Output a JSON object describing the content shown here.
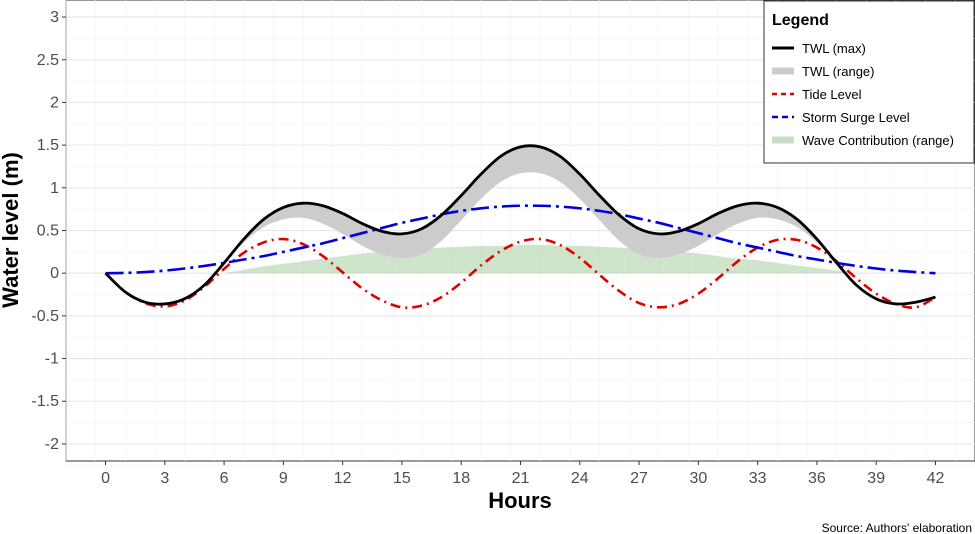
{
  "chart_data": {
    "type": "line",
    "xlabel": "Hours",
    "ylabel": "Water level (m)",
    "xlim": [
      -2,
      44
    ],
    "ylim": [
      -2.2,
      3.2
    ],
    "xticks": [
      0,
      3,
      6,
      9,
      12,
      15,
      18,
      21,
      24,
      27,
      30,
      33,
      36,
      39,
      42
    ],
    "yticks": [
      -2,
      -1.5,
      -1,
      -0.5,
      0,
      0.5,
      1,
      1.5,
      2,
      2.5,
      3
    ],
    "ytick_labels": [
      "-2",
      "-1.5",
      "-1",
      "-0.5",
      "0",
      "0.5",
      "1",
      "1.5",
      "2",
      "2.5",
      "3"
    ],
    "grid": true,
    "legend": {
      "title": "Legend",
      "placement": "top-right",
      "entries": [
        "TWL (max)",
        "TWL (range)",
        "Tide Level",
        "Storm Surge Level",
        "Wave Contribution (range)"
      ]
    },
    "caption": "Source: Authors' elaboration",
    "series": [
      {
        "name": "TWL (max)",
        "style": "solid",
        "color": "#000000",
        "x": [
          0,
          1,
          2,
          3,
          4,
          5,
          6,
          7,
          8,
          9,
          10,
          11,
          12,
          13,
          14,
          15,
          16,
          17,
          18,
          19,
          20,
          21,
          22,
          23,
          24,
          25,
          26,
          27,
          28,
          29,
          30,
          31,
          32,
          33,
          34,
          35,
          36,
          37,
          38,
          39,
          40,
          41,
          42
        ],
        "y": [
          0,
          -0.22,
          -0.34,
          -0.36,
          -0.3,
          -0.14,
          0.12,
          0.4,
          0.63,
          0.77,
          0.82,
          0.79,
          0.7,
          0.58,
          0.49,
          0.46,
          0.52,
          0.68,
          0.91,
          1.16,
          1.37,
          1.48,
          1.48,
          1.37,
          1.16,
          0.91,
          0.68,
          0.52,
          0.46,
          0.49,
          0.58,
          0.7,
          0.79,
          0.82,
          0.77,
          0.63,
          0.4,
          0.12,
          -0.14,
          -0.3,
          -0.36,
          -0.34,
          -0.28
        ]
      },
      {
        "name": "TWL (range)",
        "style": "band",
        "color": "#cccccc",
        "x": [
          0,
          1,
          2,
          3,
          4,
          5,
          6,
          7,
          8,
          9,
          10,
          11,
          12,
          13,
          14,
          15,
          16,
          17,
          18,
          19,
          20,
          21,
          22,
          23,
          24,
          25,
          26,
          27,
          28,
          29,
          30,
          31,
          32,
          33,
          34,
          35,
          36,
          37,
          38,
          39,
          40,
          41,
          42
        ],
        "lower": [
          0,
          -0.22,
          -0.34,
          -0.36,
          -0.3,
          -0.14,
          0.12,
          0.36,
          0.54,
          0.63,
          0.65,
          0.58,
          0.46,
          0.32,
          0.22,
          0.18,
          0.22,
          0.38,
          0.62,
          0.87,
          1.07,
          1.17,
          1.17,
          1.07,
          0.87,
          0.62,
          0.38,
          0.22,
          0.18,
          0.22,
          0.32,
          0.46,
          0.58,
          0.65,
          0.63,
          0.54,
          0.36,
          0.12,
          -0.14,
          -0.3,
          -0.36,
          -0.34,
          -0.28
        ],
        "upper": [
          0,
          -0.22,
          -0.34,
          -0.36,
          -0.3,
          -0.14,
          0.12,
          0.4,
          0.63,
          0.77,
          0.82,
          0.79,
          0.7,
          0.58,
          0.49,
          0.46,
          0.52,
          0.68,
          0.91,
          1.16,
          1.37,
          1.48,
          1.48,
          1.37,
          1.16,
          0.91,
          0.68,
          0.52,
          0.46,
          0.49,
          0.58,
          0.7,
          0.79,
          0.82,
          0.77,
          0.63,
          0.4,
          0.12,
          -0.14,
          -0.3,
          -0.36,
          -0.34,
          -0.28
        ]
      },
      {
        "name": "Tide Level",
        "style": "dotdash",
        "color": "#e00000",
        "x": [
          0,
          1,
          2,
          3,
          4,
          5,
          6,
          7,
          8,
          9,
          10,
          11,
          12,
          13,
          14,
          15,
          16,
          17,
          18,
          19,
          20,
          21,
          22,
          23,
          24,
          25,
          26,
          27,
          28,
          29,
          30,
          31,
          32,
          33,
          34,
          35,
          36,
          37,
          38,
          39,
          40,
          41,
          42
        ],
        "y": [
          0,
          -0.22,
          -0.35,
          -0.39,
          -0.32,
          -0.16,
          0.05,
          0.24,
          0.36,
          0.4,
          0.34,
          0.2,
          0.01,
          -0.18,
          -0.32,
          -0.4,
          -0.38,
          -0.28,
          -0.11,
          0.09,
          0.26,
          0.37,
          0.4,
          0.33,
          0.18,
          -0.02,
          -0.21,
          -0.35,
          -0.4,
          -0.36,
          -0.24,
          -0.06,
          0.14,
          0.3,
          0.39,
          0.39,
          0.3,
          0.14,
          -0.06,
          -0.24,
          -0.36,
          -0.4,
          -0.28
        ]
      },
      {
        "name": "Storm Surge Level",
        "style": "dashdot",
        "color": "#0000dd",
        "x": [
          0,
          1,
          2,
          3,
          4,
          5,
          6,
          7,
          8,
          9,
          10,
          11,
          12,
          13,
          14,
          15,
          16,
          17,
          18,
          19,
          20,
          21,
          22,
          23,
          24,
          25,
          26,
          27,
          28,
          29,
          30,
          31,
          32,
          33,
          34,
          35,
          36,
          37,
          38,
          39,
          40,
          41,
          42
        ],
        "y": [
          0,
          0.003,
          0.013,
          0.03,
          0.055,
          0.085,
          0.12,
          0.16,
          0.2,
          0.25,
          0.3,
          0.35,
          0.41,
          0.47,
          0.53,
          0.59,
          0.64,
          0.69,
          0.73,
          0.76,
          0.78,
          0.79,
          0.79,
          0.78,
          0.76,
          0.73,
          0.69,
          0.64,
          0.59,
          0.53,
          0.47,
          0.41,
          0.35,
          0.3,
          0.25,
          0.2,
          0.16,
          0.12,
          0.085,
          0.055,
          0.03,
          0.013,
          0
        ]
      },
      {
        "name": "Wave Contribution (range)",
        "style": "band",
        "color": "#a8cfa0",
        "x": [
          6,
          7,
          8,
          9,
          10,
          11,
          12,
          13,
          14,
          15,
          16,
          17,
          18,
          19,
          20,
          21,
          22,
          23,
          24,
          25,
          26,
          27,
          28,
          29,
          30,
          31,
          32,
          33,
          34,
          35,
          36,
          37,
          38
        ],
        "lower": [
          0,
          0,
          0,
          0,
          0,
          0,
          0,
          0,
          0,
          0,
          0,
          0,
          0,
          0,
          0,
          0,
          0,
          0,
          0,
          0,
          0,
          0,
          0,
          0,
          0,
          0,
          0,
          0,
          0,
          0,
          0,
          0,
          0
        ],
        "upper": [
          0,
          0.04,
          0.08,
          0.11,
          0.14,
          0.17,
          0.2,
          0.23,
          0.25,
          0.27,
          0.29,
          0.3,
          0.31,
          0.32,
          0.32,
          0.33,
          0.33,
          0.32,
          0.32,
          0.31,
          0.3,
          0.29,
          0.27,
          0.25,
          0.23,
          0.2,
          0.17,
          0.15,
          0.12,
          0.09,
          0.06,
          0.03,
          0
        ]
      }
    ]
  }
}
